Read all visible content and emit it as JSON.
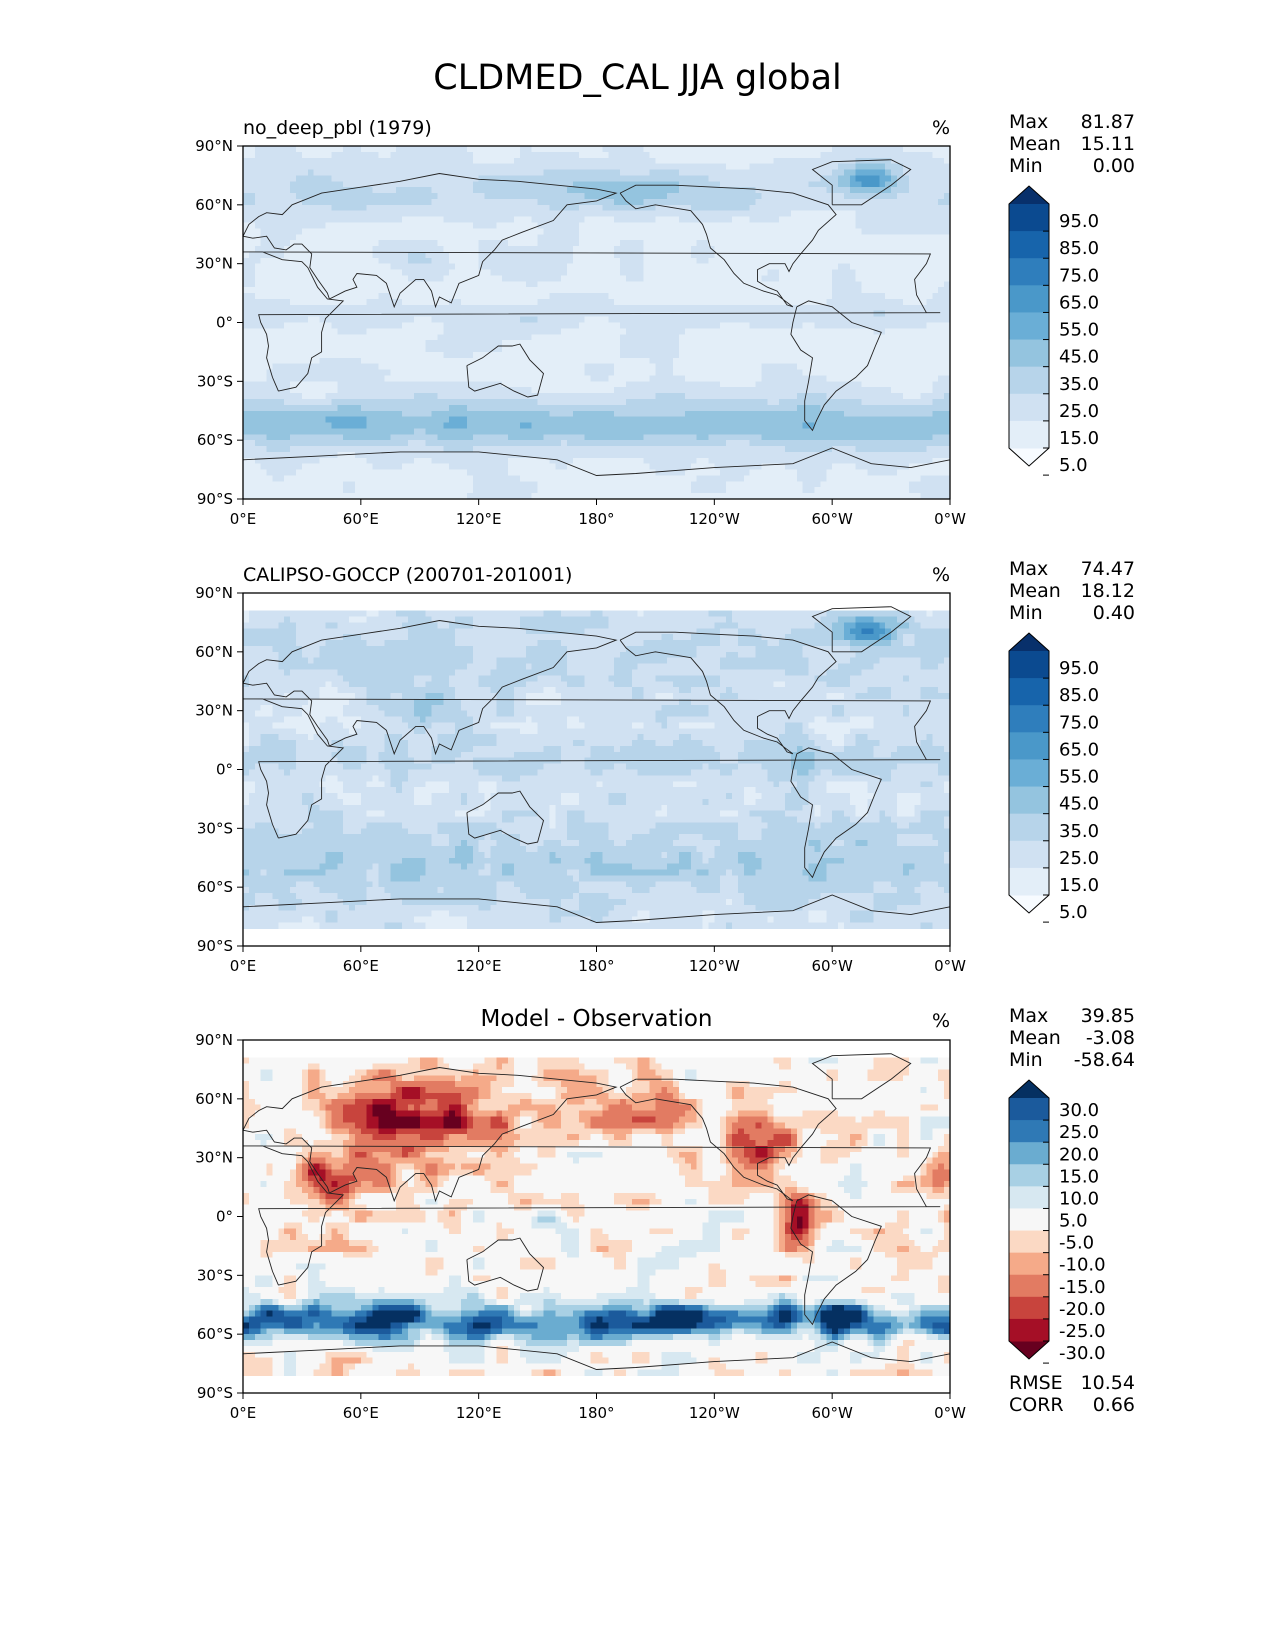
{
  "figure": {
    "title": "CLDMED_CAL JJA global"
  },
  "chart_data": [
    {
      "type": "heatmap",
      "title": "no_deep_pbl (1979)",
      "units": "%",
      "colormap": "Blues",
      "xticks": [
        "0°E",
        "60°E",
        "120°E",
        "180°",
        "120°W",
        "60°W",
        "0°W"
      ],
      "yticks": [
        "90°N",
        "60°N",
        "30°N",
        "0°",
        "30°S",
        "60°S",
        "90°S"
      ],
      "xlim": [
        0,
        360
      ],
      "ylim": [
        -90,
        90
      ],
      "stats": {
        "Max": "81.87",
        "Mean": "15.11",
        "Min": "0.00"
      },
      "colorbar": {
        "labels": [
          "95.0",
          "85.0",
          "75.0",
          "65.0",
          "55.0",
          "45.0",
          "35.0",
          "25.0",
          "15.0",
          "5.0"
        ],
        "colors": [
          "#08306b",
          "#0b4a90",
          "#1764ab",
          "#2f7ebc",
          "#4a98c9",
          "#6aaed6",
          "#94c4df",
          "#b7d4ea",
          "#d0e1f2",
          "#e3eef8",
          "#f7fbff"
        ]
      }
    },
    {
      "type": "heatmap",
      "title": "CALIPSO-GOCCP (200701-201001)",
      "units": "%",
      "colormap": "Blues",
      "xticks": [
        "0°E",
        "60°E",
        "120°E",
        "180°",
        "120°W",
        "60°W",
        "0°W"
      ],
      "yticks": [
        "90°N",
        "60°N",
        "30°N",
        "0°",
        "30°S",
        "60°S",
        "90°S"
      ],
      "xlim": [
        0,
        360
      ],
      "ylim": [
        -90,
        90
      ],
      "stats": {
        "Max": "74.47",
        "Mean": "18.12",
        "Min": "0.40"
      },
      "colorbar": {
        "labels": [
          "95.0",
          "85.0",
          "75.0",
          "65.0",
          "55.0",
          "45.0",
          "35.0",
          "25.0",
          "15.0",
          "5.0"
        ],
        "colors": [
          "#08306b",
          "#0b4a90",
          "#1764ab",
          "#2f7ebc",
          "#4a98c9",
          "#6aaed6",
          "#94c4df",
          "#b7d4ea",
          "#d0e1f2",
          "#e3eef8",
          "#f7fbff"
        ]
      }
    },
    {
      "type": "heatmap",
      "title": "Model - Observation",
      "units": "%",
      "colormap": "RdBu",
      "xticks": [
        "0°E",
        "60°E",
        "120°E",
        "180°",
        "120°W",
        "60°W",
        "0°W"
      ],
      "yticks": [
        "90°N",
        "60°N",
        "30°N",
        "0°",
        "30°S",
        "60°S",
        "90°S"
      ],
      "xlim": [
        0,
        360
      ],
      "ylim": [
        -90,
        90
      ],
      "stats": {
        "Max": "39.85",
        "Mean": "-3.08",
        "Min": "-58.64"
      },
      "metrics": {
        "RMSE": "10.54",
        "CORR": "0.66"
      },
      "colorbar": {
        "labels": [
          "30.0",
          "25.0",
          "20.0",
          "15.0",
          "10.0",
          "5.0",
          "-5.0",
          "-10.0",
          "-15.0",
          "-20.0",
          "-25.0",
          "-30.0"
        ],
        "colors": [
          "#053061",
          "#1b5a9c",
          "#2f79b5",
          "#6aacd0",
          "#a8d0e4",
          "#d7e8f1",
          "#f7f7f7",
          "#fbd9c4",
          "#f5aa89",
          "#e27b62",
          "#c8443d",
          "#a50f26",
          "#67001f"
        ]
      }
    }
  ]
}
